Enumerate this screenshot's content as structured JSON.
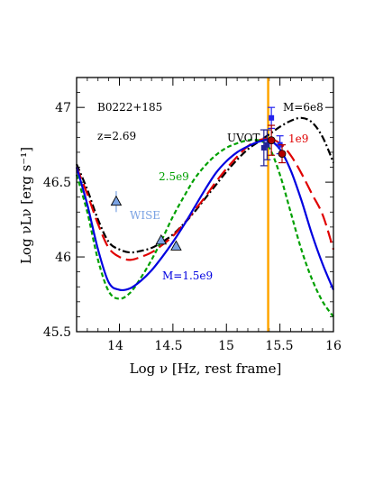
{
  "chart_data": {
    "type": "line",
    "xlabel": "Log ν [Hz, rest frame]",
    "ylabel": "Log νLν [erg s⁻¹]",
    "xlim": [
      13.6,
      16.0
    ],
    "ylim": [
      45.5,
      47.2
    ],
    "x_ticks": [
      14,
      14.5,
      15,
      15.5,
      16
    ],
    "y_ticks": [
      45.5,
      46,
      46.5,
      47
    ],
    "x_tick_labels": [
      "14",
      "14.5",
      "15",
      "15.5",
      "16"
    ],
    "y_tick_labels": [
      "45.5",
      "46",
      "46.5",
      "47"
    ],
    "annotations": {
      "source": "B0222+185",
      "redshift": "z=2.69",
      "uvot": "UVOT",
      "wise": "WISE",
      "m_black": "M=6e8",
      "m_red": "1e9",
      "m_green": "2.5e9",
      "m_blue": "M=1.5e9"
    },
    "series": [
      {
        "label": "M=6e8",
        "color": "#000000",
        "dash": "8,3,2,3",
        "x": [
          13.6,
          13.7,
          13.8,
          13.9,
          14.0,
          14.1,
          14.2,
          14.3,
          14.4,
          14.5,
          14.6,
          14.7,
          14.8,
          14.9,
          15.0,
          15.1,
          15.2,
          15.3,
          15.4,
          15.5,
          15.6,
          15.7,
          15.8,
          15.9,
          16.0
        ],
        "y": [
          46.62,
          46.45,
          46.25,
          46.1,
          46.05,
          46.03,
          46.04,
          46.06,
          46.1,
          46.15,
          46.22,
          46.3,
          46.39,
          46.48,
          46.57,
          46.65,
          46.72,
          46.77,
          46.82,
          46.87,
          46.91,
          46.93,
          46.9,
          46.8,
          46.63
        ]
      },
      {
        "label": "1e9",
        "color": "#e00000",
        "dash": "14,6",
        "x": [
          13.6,
          13.7,
          13.8,
          13.9,
          14.0,
          14.1,
          14.2,
          14.3,
          14.4,
          14.5,
          14.6,
          14.7,
          14.8,
          14.9,
          15.0,
          15.1,
          15.2,
          15.3,
          15.4,
          15.5,
          15.6,
          15.7,
          15.8,
          15.9,
          16.0
        ],
        "y": [
          46.6,
          46.42,
          46.22,
          46.06,
          46.0,
          45.98,
          46.0,
          46.03,
          46.08,
          46.14,
          46.22,
          46.31,
          46.4,
          46.5,
          46.59,
          46.67,
          46.74,
          46.78,
          46.79,
          46.76,
          46.68,
          46.56,
          46.42,
          46.28,
          46.05
        ]
      },
      {
        "label": "2.5e9",
        "color": "#00a000",
        "dash": "5,3",
        "x": [
          13.6,
          13.7,
          13.8,
          13.9,
          14.0,
          14.1,
          14.2,
          14.3,
          14.4,
          14.5,
          14.6,
          14.7,
          14.8,
          14.9,
          15.0,
          15.1,
          15.2,
          15.3,
          15.4,
          15.5,
          15.6,
          15.7,
          15.8,
          15.9,
          16.0
        ],
        "y": [
          46.55,
          46.3,
          45.98,
          45.77,
          45.72,
          45.76,
          45.86,
          45.98,
          46.12,
          46.27,
          46.4,
          46.52,
          46.61,
          46.68,
          46.73,
          46.76,
          46.78,
          46.78,
          46.73,
          46.55,
          46.3,
          46.05,
          45.85,
          45.7,
          45.6
        ]
      },
      {
        "label": "M=1.5e9",
        "color": "#0000e0",
        "dash": "",
        "x": [
          13.6,
          13.7,
          13.8,
          13.9,
          14.0,
          14.1,
          14.2,
          14.3,
          14.4,
          14.5,
          14.6,
          14.7,
          14.8,
          14.9,
          15.0,
          15.1,
          15.2,
          15.3,
          15.4,
          15.5,
          15.6,
          15.7,
          15.8,
          15.9,
          16.0
        ],
        "y": [
          46.6,
          46.35,
          46.05,
          45.83,
          45.78,
          45.79,
          45.84,
          45.91,
          46.0,
          46.1,
          46.21,
          46.33,
          46.45,
          46.56,
          46.64,
          46.7,
          46.74,
          46.77,
          46.78,
          46.72,
          46.58,
          46.38,
          46.15,
          45.95,
          45.78
        ]
      }
    ],
    "vline": {
      "x": 15.39,
      "color": "#ffa500"
    },
    "wise_points": [
      {
        "x": 13.97,
        "y": 46.37,
        "err": 0.07
      },
      {
        "x": 14.39,
        "y": 46.11,
        "err": 0.0
      },
      {
        "x": 14.53,
        "y": 46.07,
        "err": 0.0
      }
    ],
    "uvot_points": [
      {
        "x": 15.35,
        "y": 46.73,
        "err": 0.12,
        "color": "#222299",
        "shape": "square"
      },
      {
        "x": 15.38,
        "y": 46.75,
        "err": 0.1,
        "color": "#222299",
        "shape": "square"
      },
      {
        "x": 15.42,
        "y": 46.93,
        "err": 0.07,
        "color": "#2222ee",
        "shape": "square"
      },
      {
        "x": 15.42,
        "y": 46.78,
        "err": 0.1,
        "color": "#b00000",
        "shape": "circle"
      },
      {
        "x": 15.5,
        "y": 46.75,
        "err": 0.06,
        "color": "#2222ee",
        "shape": "square"
      },
      {
        "x": 15.52,
        "y": 46.69,
        "err": 0.06,
        "color": "#b00000",
        "shape": "circle"
      }
    ]
  }
}
